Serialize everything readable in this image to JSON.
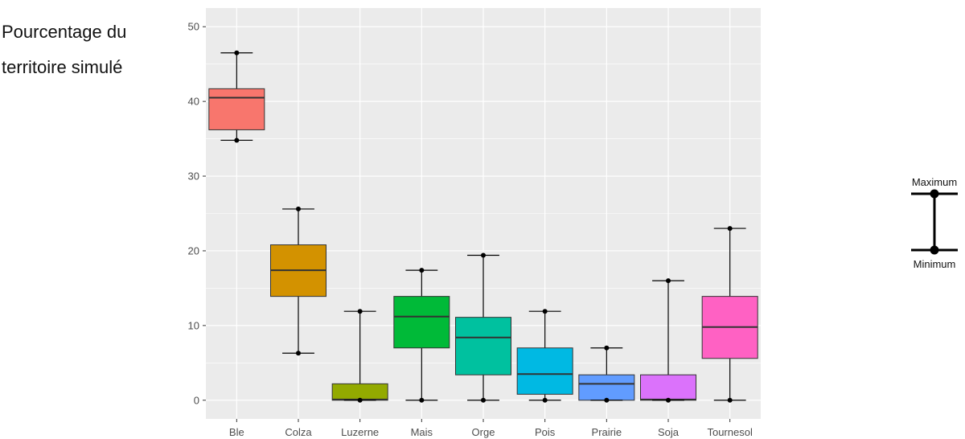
{
  "chart_data": {
    "type": "boxplot",
    "ylabel_lines": [
      "Pourcentage du",
      "territoire simulé"
    ],
    "ylim": [
      -2.5,
      52.5
    ],
    "yticks": [
      0,
      10,
      20,
      30,
      40,
      50
    ],
    "ytick_labels": [
      "0",
      "10",
      "20",
      "30",
      "40",
      "50"
    ],
    "grid": true,
    "categories": [
      "Ble",
      "Colza",
      "Luzerne",
      "Mais",
      "Orge",
      "Pois",
      "Prairie",
      "Soja",
      "Tournesol"
    ],
    "boxes": [
      {
        "category": "Ble",
        "min": 34.8,
        "q1": 36.2,
        "median": 40.5,
        "q3": 41.7,
        "max": 46.5,
        "color": "#F8766D"
      },
      {
        "category": "Colza",
        "min": 6.3,
        "q1": 13.9,
        "median": 17.4,
        "q3": 20.8,
        "max": 25.6,
        "color": "#D39200"
      },
      {
        "category": "Luzerne",
        "min": 0.0,
        "q1": 0.0,
        "median": 0.1,
        "q3": 2.2,
        "max": 11.9,
        "color": "#93AA00"
      },
      {
        "category": "Mais",
        "min": 0.0,
        "q1": 7.0,
        "median": 11.2,
        "q3": 13.9,
        "max": 17.4,
        "color": "#00BA38"
      },
      {
        "category": "Orge",
        "min": 0.0,
        "q1": 3.4,
        "median": 8.4,
        "q3": 11.1,
        "max": 19.4,
        "color": "#00C19F"
      },
      {
        "category": "Pois",
        "min": 0.0,
        "q1": 0.8,
        "median": 3.5,
        "q3": 7.0,
        "max": 11.9,
        "color": "#00B9E3"
      },
      {
        "category": "Prairie",
        "min": 0.0,
        "q1": 0.0,
        "median": 2.2,
        "q3": 3.4,
        "max": 7.0,
        "color": "#619CFF"
      },
      {
        "category": "Soja",
        "min": 0.0,
        "q1": 0.0,
        "median": 0.1,
        "q3": 3.4,
        "max": 16.0,
        "color": "#DB72FB"
      },
      {
        "category": "Tournesol",
        "min": 0.0,
        "q1": 5.6,
        "median": 9.8,
        "q3": 13.9,
        "max": 23.0,
        "color": "#FF61C3"
      }
    ],
    "legend": {
      "placement": "right",
      "max_label": "Maximum",
      "min_label": "Minimum"
    },
    "colors": {
      "panel_background": "#EBEBEB",
      "grid_major": "#FFFFFF",
      "box_outline": "#333333",
      "whisker": "#000000"
    }
  }
}
